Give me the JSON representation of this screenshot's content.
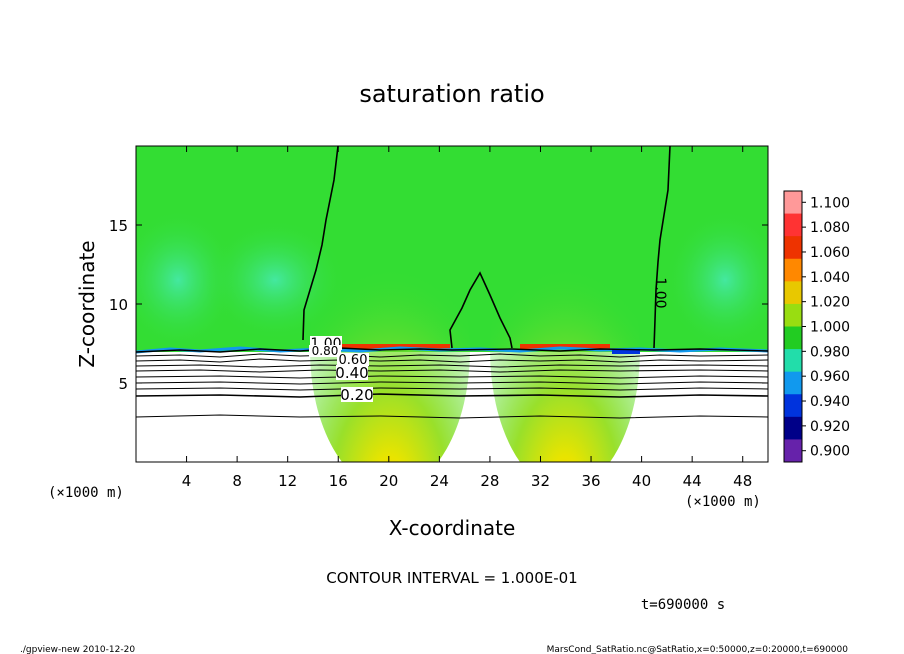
{
  "chart_data": {
    "type": "heatmap",
    "title": "saturation ratio",
    "xlabel": "X-coordinate",
    "ylabel": "Z-coordinate",
    "x_unit": "(×1000 m)",
    "y_unit": "(×1000 m)",
    "xlim": [
      0,
      50
    ],
    "ylim": [
      0,
      20
    ],
    "x_ticks": [
      4,
      8,
      12,
      16,
      20,
      24,
      28,
      32,
      36,
      40,
      44,
      48
    ],
    "y_ticks": [
      5,
      10,
      15
    ],
    "colorbar": {
      "levels": [
        "1.100",
        "1.080",
        "1.060",
        "1.040",
        "1.020",
        "1.000",
        "0.980",
        "0.960",
        "0.940",
        "0.920",
        "0.900"
      ],
      "colors": [
        "#ff9999",
        "#ff3333",
        "#ee3300",
        "#ff8800",
        "#e8c800",
        "#99dd11",
        "#22cc22",
        "#22ddaa",
        "#1199ee",
        "#0033dd",
        "#000088",
        "#6622aa"
      ]
    },
    "contours": [
      {
        "level": 0.2,
        "label": "0.20"
      },
      {
        "level": 0.4,
        "label": "0.40"
      },
      {
        "level": 0.6,
        "label": "0.60"
      },
      {
        "level": 0.8,
        "label": "0.80"
      },
      {
        "level": 1.0,
        "label": "1.00"
      }
    ],
    "contour_interval_text": "CONTOUR INTERVAL = 1.000E-01",
    "time_text": "t=690000  s",
    "saturated_layer_bottom_km": 7.0
  },
  "footer": {
    "left": "./gpview-new   2010-12-20",
    "right": "MarsCond_SatRatio.nc@SatRatio,x=0:50000,z=0:20000,t=690000"
  }
}
